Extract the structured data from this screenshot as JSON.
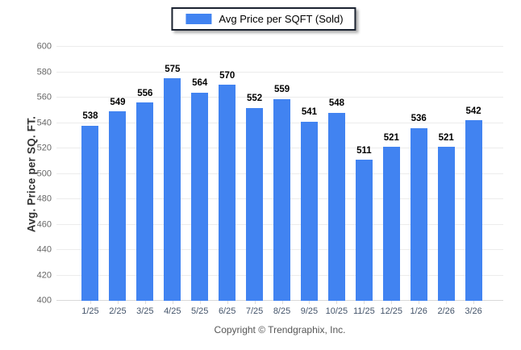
{
  "legend": {
    "label": "Avg Price per SQFT (Sold)"
  },
  "footer": {
    "copyright": "Copyright © Trendgraphix, Inc."
  },
  "chart_data": {
    "type": "bar",
    "title": "",
    "series_name": "Avg Price per SQFT (Sold)",
    "categories": [
      "1/25",
      "2/25",
      "3/25",
      "4/25",
      "5/25",
      "6/25",
      "7/25",
      "8/25",
      "9/25",
      "10/25",
      "11/25",
      "12/25",
      "1/26",
      "2/26",
      "3/26"
    ],
    "values": [
      538,
      549,
      556,
      575,
      564,
      570,
      552,
      559,
      541,
      548,
      511,
      521,
      536,
      521,
      542
    ],
    "xlabel": "",
    "ylabel": "Avg. Price per SQ. FT.",
    "ylim": [
      400,
      600
    ],
    "ytick_step": 20,
    "grid": true,
    "value_labels": true,
    "legend_position": "top-center",
    "colors": {
      "bar": "#4183f1",
      "gridline": "#ececec",
      "axis_line": "#d9d9d9",
      "ytick_label": "#666666",
      "xtick_label": "#44546a",
      "value_label": "#000000",
      "ylabel_text": "#333333",
      "legend_border": "#1a2230",
      "footer_text": "#555555"
    }
  }
}
